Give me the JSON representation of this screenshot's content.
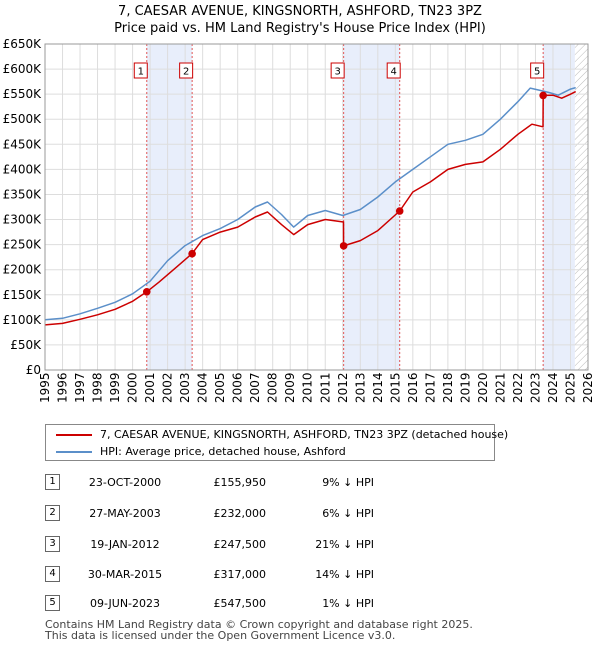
{
  "title": {
    "line1": "7, CAESAR AVENUE, KINGSNORTH, ASHFORD, TN23 3PZ",
    "line2": "Price paid vs. HM Land Registry's House Price Index (HPI)"
  },
  "chart_data": {
    "type": "line",
    "xlim": [
      1995,
      2026
    ],
    "ylim": [
      0,
      650000
    ],
    "y_ticks": [
      {
        "value": 0,
        "label": "£0"
      },
      {
        "value": 50000,
        "label": "£50K"
      },
      {
        "value": 100000,
        "label": "£100K"
      },
      {
        "value": 150000,
        "label": "£150K"
      },
      {
        "value": 200000,
        "label": "£200K"
      },
      {
        "value": 250000,
        "label": "£250K"
      },
      {
        "value": 300000,
        "label": "£300K"
      },
      {
        "value": 350000,
        "label": "£350K"
      },
      {
        "value": 400000,
        "label": "£400K"
      },
      {
        "value": 450000,
        "label": "£450K"
      },
      {
        "value": 500000,
        "label": "£500K"
      },
      {
        "value": 550000,
        "label": "£550K"
      },
      {
        "value": 600000,
        "label": "£600K"
      },
      {
        "value": 650000,
        "label": "£650K"
      }
    ],
    "x_ticks": [
      "1995",
      "1996",
      "1997",
      "1998",
      "1999",
      "2000",
      "2001",
      "2002",
      "2003",
      "2004",
      "2005",
      "2006",
      "2007",
      "2008",
      "2009",
      "2010",
      "2011",
      "2012",
      "2013",
      "2014",
      "2015",
      "2016",
      "2017",
      "2018",
      "2019",
      "2020",
      "2021",
      "2022",
      "2023",
      "2024",
      "2025",
      "2026"
    ],
    "shaded_ranges": [
      [
        2000.81,
        2003.4
      ],
      [
        2012.05,
        2015.25
      ],
      [
        2023.44,
        2025.25
      ]
    ],
    "hatched_range": [
      2025.25,
      2026
    ],
    "series": [
      {
        "name": "HPI: Average price, detached house, Ashford",
        "color": "#5b8fc9",
        "x": [
          1995,
          1996,
          1997,
          1998,
          1999,
          2000,
          2001,
          2002,
          2003,
          2004,
          2005,
          2006,
          2007,
          2007.7,
          2008.5,
          2009.2,
          2010,
          2011,
          2012,
          2013,
          2014,
          2015,
          2016,
          2017,
          2018,
          2019,
          2020,
          2021,
          2022,
          2022.7,
          2023.2,
          2023.8,
          2024.3,
          2025,
          2025.3
        ],
        "values": [
          100000,
          103000,
          112000,
          123000,
          135000,
          152000,
          177000,
          218000,
          248000,
          268000,
          282000,
          300000,
          325000,
          335000,
          310000,
          285000,
          308000,
          318000,
          308000,
          320000,
          345000,
          375000,
          400000,
          425000,
          450000,
          458000,
          470000,
          500000,
          535000,
          562000,
          558000,
          553000,
          548000,
          560000,
          563000
        ]
      },
      {
        "name": "7, CAESAR AVENUE, KINGSNORTH, ASHFORD, TN23 3PZ (detached house)",
        "color": "#cc0000",
        "x": [
          1995,
          1996,
          1997,
          1998,
          1999,
          2000,
          2000.81,
          2001.5,
          2002.5,
          2003.4,
          2004,
          2005,
          2006,
          2007,
          2007.7,
          2008.5,
          2009.2,
          2010,
          2011,
          2012.04,
          2012.05,
          2013,
          2014,
          2015.25,
          2016,
          2017,
          2018,
          2019,
          2020,
          2021,
          2022,
          2022.8,
          2023.43,
          2023.44,
          2024,
          2024.5,
          2025,
          2025.3
        ],
        "values": [
          90000,
          93000,
          101000,
          110000,
          121000,
          137000,
          155950,
          175000,
          205000,
          232000,
          260000,
          275000,
          285000,
          305000,
          315000,
          290000,
          270000,
          290000,
          300000,
          295000,
          247500,
          258000,
          278000,
          317000,
          355000,
          375000,
          400000,
          410000,
          415000,
          440000,
          470000,
          490000,
          485000,
          547500,
          548000,
          542000,
          550000,
          555000
        ]
      }
    ],
    "sales": [
      {
        "num": "1",
        "x": 2000.81,
        "value": 155950
      },
      {
        "num": "2",
        "x": 2003.4,
        "value": 232000
      },
      {
        "num": "3",
        "x": 2012.05,
        "value": 247500
      },
      {
        "num": "4",
        "x": 2015.25,
        "value": 317000
      },
      {
        "num": "5",
        "x": 2023.44,
        "value": 547500
      }
    ]
  },
  "legend": [
    {
      "label": "7, CAESAR AVENUE, KINGSNORTH, ASHFORD, TN23 3PZ (detached house)",
      "color": "#cc0000"
    },
    {
      "label": "HPI: Average price, detached house, Ashford",
      "color": "#5b8fc9"
    }
  ],
  "sales_table": [
    {
      "num": "1",
      "date": "23-OCT-2000",
      "price": "£155,950",
      "hpi": "9% ↓ HPI"
    },
    {
      "num": "2",
      "date": "27-MAY-2003",
      "price": "£232,000",
      "hpi": "6% ↓ HPI"
    },
    {
      "num": "3",
      "date": "19-JAN-2012",
      "price": "£247,500",
      "hpi": "21% ↓ HPI"
    },
    {
      "num": "4",
      "date": "30-MAR-2015",
      "price": "£317,000",
      "hpi": "14% ↓ HPI"
    },
    {
      "num": "5",
      "date": "09-JUN-2023",
      "price": "£547,500",
      "hpi": "1% ↓ HPI"
    }
  ],
  "footer": {
    "line1": "Contains HM Land Registry data © Crown copyright and database right 2025.",
    "line2": "This data is licensed under the Open Government Licence v3.0."
  }
}
